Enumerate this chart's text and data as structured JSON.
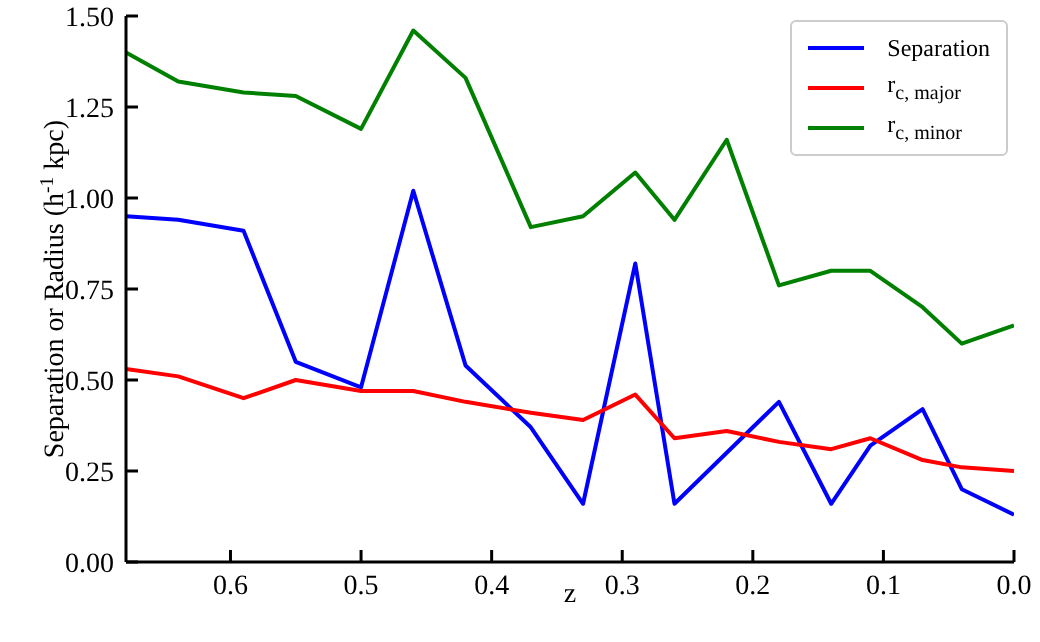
{
  "chart_data": {
    "type": "line",
    "x": [
      0.68,
      0.64,
      0.59,
      0.55,
      0.5,
      0.46,
      0.42,
      0.37,
      0.33,
      0.29,
      0.26,
      0.22,
      0.18,
      0.14,
      0.11,
      0.07,
      0.04,
      0.0
    ],
    "series": [
      {
        "name": "Separation",
        "color": "#0000ff",
        "values": [
          0.95,
          0.94,
          0.91,
          0.55,
          0.48,
          1.02,
          0.54,
          0.37,
          0.16,
          0.82,
          0.16,
          0.3,
          0.44,
          0.16,
          0.32,
          0.42,
          0.2,
          0.13
        ]
      },
      {
        "name": "r$_{c, major}$",
        "color": "#ff0000",
        "values": [
          0.53,
          0.51,
          0.45,
          0.5,
          0.47,
          0.47,
          0.44,
          0.41,
          0.39,
          0.46,
          0.34,
          0.36,
          0.33,
          0.31,
          0.34,
          0.28,
          0.26,
          0.25
        ]
      },
      {
        "name": "r$_{c, minor}$",
        "color": "#008000",
        "values": [
          1.4,
          1.32,
          1.29,
          1.28,
          1.19,
          1.46,
          1.33,
          0.92,
          0.95,
          1.07,
          0.94,
          1.16,
          0.76,
          0.8,
          0.8,
          0.7,
          0.6,
          0.65
        ]
      }
    ],
    "xlabel": "z",
    "ylabel": "Separation or Radius (h$^{-1}$ kpc)",
    "xlim": [
      0.68,
      0.0
    ],
    "xticks": [
      0.6,
      0.5,
      0.4,
      0.3,
      0.2,
      0.1,
      {
        "value": 0,
        "label": "0.0"
      }
    ],
    "ylim": [
      0,
      1.5
    ],
    "yticks": [
      {
        "value": 0,
        "label": "0.00"
      },
      0.25,
      {
        "value": 0.5,
        "label": "0.50"
      },
      0.75,
      {
        "value": 1,
        "label": "1.00"
      },
      1.25,
      {
        "value": 1.5,
        "label": "1.50"
      }
    ],
    "grid": false,
    "legend": "top right",
    "marker": "none",
    "line_style": "solid"
  }
}
